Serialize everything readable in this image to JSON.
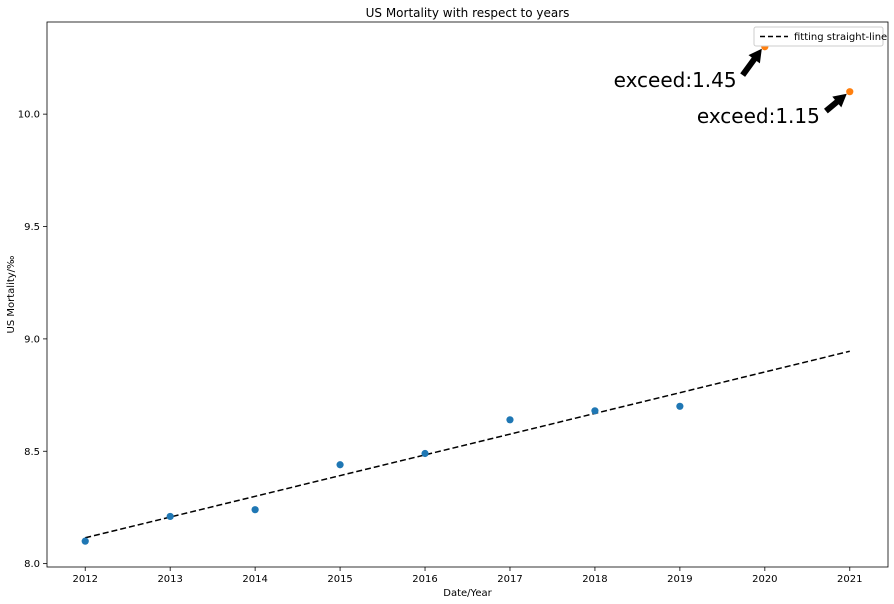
{
  "chart_data": {
    "type": "scatter",
    "title": "US Mortality with respect to years",
    "xlabel": "Date/Year",
    "ylabel": "US Mortality/‰",
    "xlim": [
      2011.55,
      2021.45
    ],
    "ylim": [
      7.985,
      10.41
    ],
    "x_ticks": [
      2012,
      2013,
      2014,
      2015,
      2016,
      2017,
      2018,
      2019,
      2020,
      2021
    ],
    "y_ticks": [
      "8.0",
      "8.5",
      "9.0",
      "9.5",
      "10.0"
    ],
    "grid": false,
    "legend_position": "top-right",
    "series": [
      {
        "role": "observed",
        "color": "#1f77b4",
        "x": [
          2012,
          2013,
          2014,
          2015,
          2016,
          2017,
          2018,
          2019
        ],
        "y": [
          8.1,
          8.21,
          8.24,
          8.44,
          8.49,
          8.64,
          8.68,
          8.7
        ]
      },
      {
        "role": "exceeding",
        "color": "#ff7f0e",
        "x": [
          2020,
          2021
        ],
        "y": [
          10.3,
          10.1
        ]
      },
      {
        "role": "fit",
        "name": "fitting straight-line",
        "style": "dashed",
        "color": "#000000",
        "x": [
          2012,
          2021
        ],
        "y": [
          8.115,
          8.945
        ]
      }
    ],
    "annotations": [
      {
        "text": "exceed:1.45",
        "x": 2020,
        "y": 10.3,
        "text_x": 2018.22,
        "text_y": 10.12
      },
      {
        "text": "exceed:1.15",
        "x": 2021,
        "y": 10.1,
        "text_x": 2019.2,
        "text_y": 9.96
      }
    ]
  }
}
